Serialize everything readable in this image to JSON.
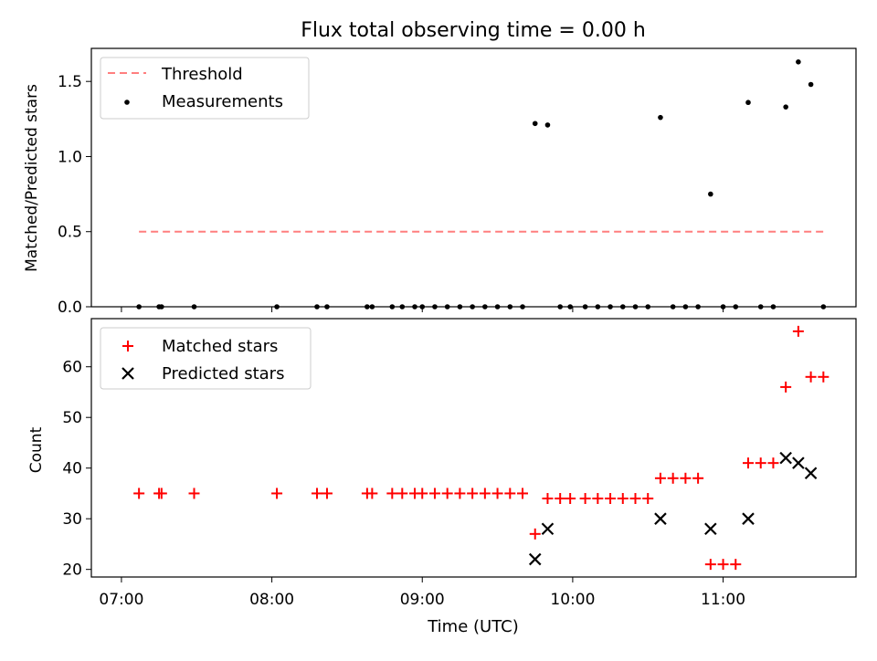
{
  "title": "Flux total observing time = 0.00 h",
  "xlabel": "Time (UTC)",
  "xticks": [
    "07:00",
    "08:00",
    "09:00",
    "10:00",
    "11:00"
  ],
  "chart_data": [
    {
      "type": "scatter",
      "panel": "top",
      "ylabel": "Matched/Predicted stars",
      "ylim": [
        0,
        1.72
      ],
      "yticks": [
        "0.0",
        "0.5",
        "1.0",
        "1.5"
      ],
      "legend_position": "top-left",
      "colors": {
        "threshold": "#ff7f7f",
        "measurements": "#000000"
      },
      "threshold": {
        "name": "Threshold",
        "value": 0.5,
        "x_start": "07:07",
        "x_end": "11:40"
      },
      "measurements": {
        "name": "Measurements",
        "x": [
          "07:07",
          "07:15",
          "07:16",
          "07:29",
          "08:02",
          "08:18",
          "08:22",
          "08:38",
          "08:40",
          "08:48",
          "08:52",
          "08:57",
          "09:00",
          "09:05",
          "09:10",
          "09:15",
          "09:20",
          "09:25",
          "09:30",
          "09:35",
          "09:40",
          "09:45",
          "09:50",
          "09:55",
          "09:59",
          "10:05",
          "10:10",
          "10:15",
          "10:20",
          "10:25",
          "10:30",
          "10:35",
          "10:40",
          "10:45",
          "10:50",
          "10:55",
          "11:00",
          "11:05",
          "11:10",
          "11:15",
          "11:20",
          "11:25",
          "11:30",
          "11:35",
          "11:40"
        ],
        "y": [
          0,
          0,
          0,
          0,
          0,
          0,
          0,
          0,
          0,
          0,
          0,
          0,
          0,
          0,
          0,
          0,
          0,
          0,
          0,
          0,
          0,
          1.22,
          1.21,
          0,
          0,
          0,
          0,
          0,
          0,
          0,
          0,
          1.26,
          0,
          0,
          0,
          0.75,
          0,
          0,
          1.36,
          0,
          0,
          1.33,
          1.63,
          1.48,
          0
        ]
      }
    },
    {
      "type": "scatter",
      "panel": "bottom",
      "ylabel": "Count",
      "ylim": [
        18.5,
        69.5
      ],
      "yticks": [
        "20",
        "30",
        "40",
        "50",
        "60"
      ],
      "legend_position": "top-left",
      "colors": {
        "matched": "#ff0000",
        "predicted": "#000000"
      },
      "matched": {
        "name": "Matched stars",
        "x": [
          "07:07",
          "07:15",
          "07:16",
          "07:29",
          "08:02",
          "08:18",
          "08:22",
          "08:38",
          "08:40",
          "08:48",
          "08:52",
          "08:57",
          "09:00",
          "09:05",
          "09:10",
          "09:15",
          "09:20",
          "09:25",
          "09:30",
          "09:35",
          "09:40",
          "09:45",
          "09:50",
          "09:55",
          "09:59",
          "10:05",
          "10:10",
          "10:15",
          "10:20",
          "10:25",
          "10:30",
          "10:35",
          "10:40",
          "10:45",
          "10:50",
          "10:55",
          "11:00",
          "11:05",
          "11:10",
          "11:15",
          "11:20",
          "11:25",
          "11:30",
          "11:35",
          "11:40"
        ],
        "y": [
          35,
          35,
          35,
          35,
          35,
          35,
          35,
          35,
          35,
          35,
          35,
          35,
          35,
          35,
          35,
          35,
          35,
          35,
          35,
          35,
          35,
          27,
          34,
          34,
          34,
          34,
          34,
          34,
          34,
          34,
          34,
          38,
          38,
          38,
          38,
          21,
          21,
          21,
          41,
          41,
          41,
          56,
          67,
          58,
          58
        ]
      },
      "predicted": {
        "name": "Predicted stars",
        "x": [
          "09:45",
          "09:50",
          "10:35",
          "10:55",
          "11:10",
          "11:25",
          "11:30",
          "11:35"
        ],
        "y": [
          22,
          28,
          30,
          28,
          30,
          42,
          41,
          39
        ]
      }
    }
  ]
}
